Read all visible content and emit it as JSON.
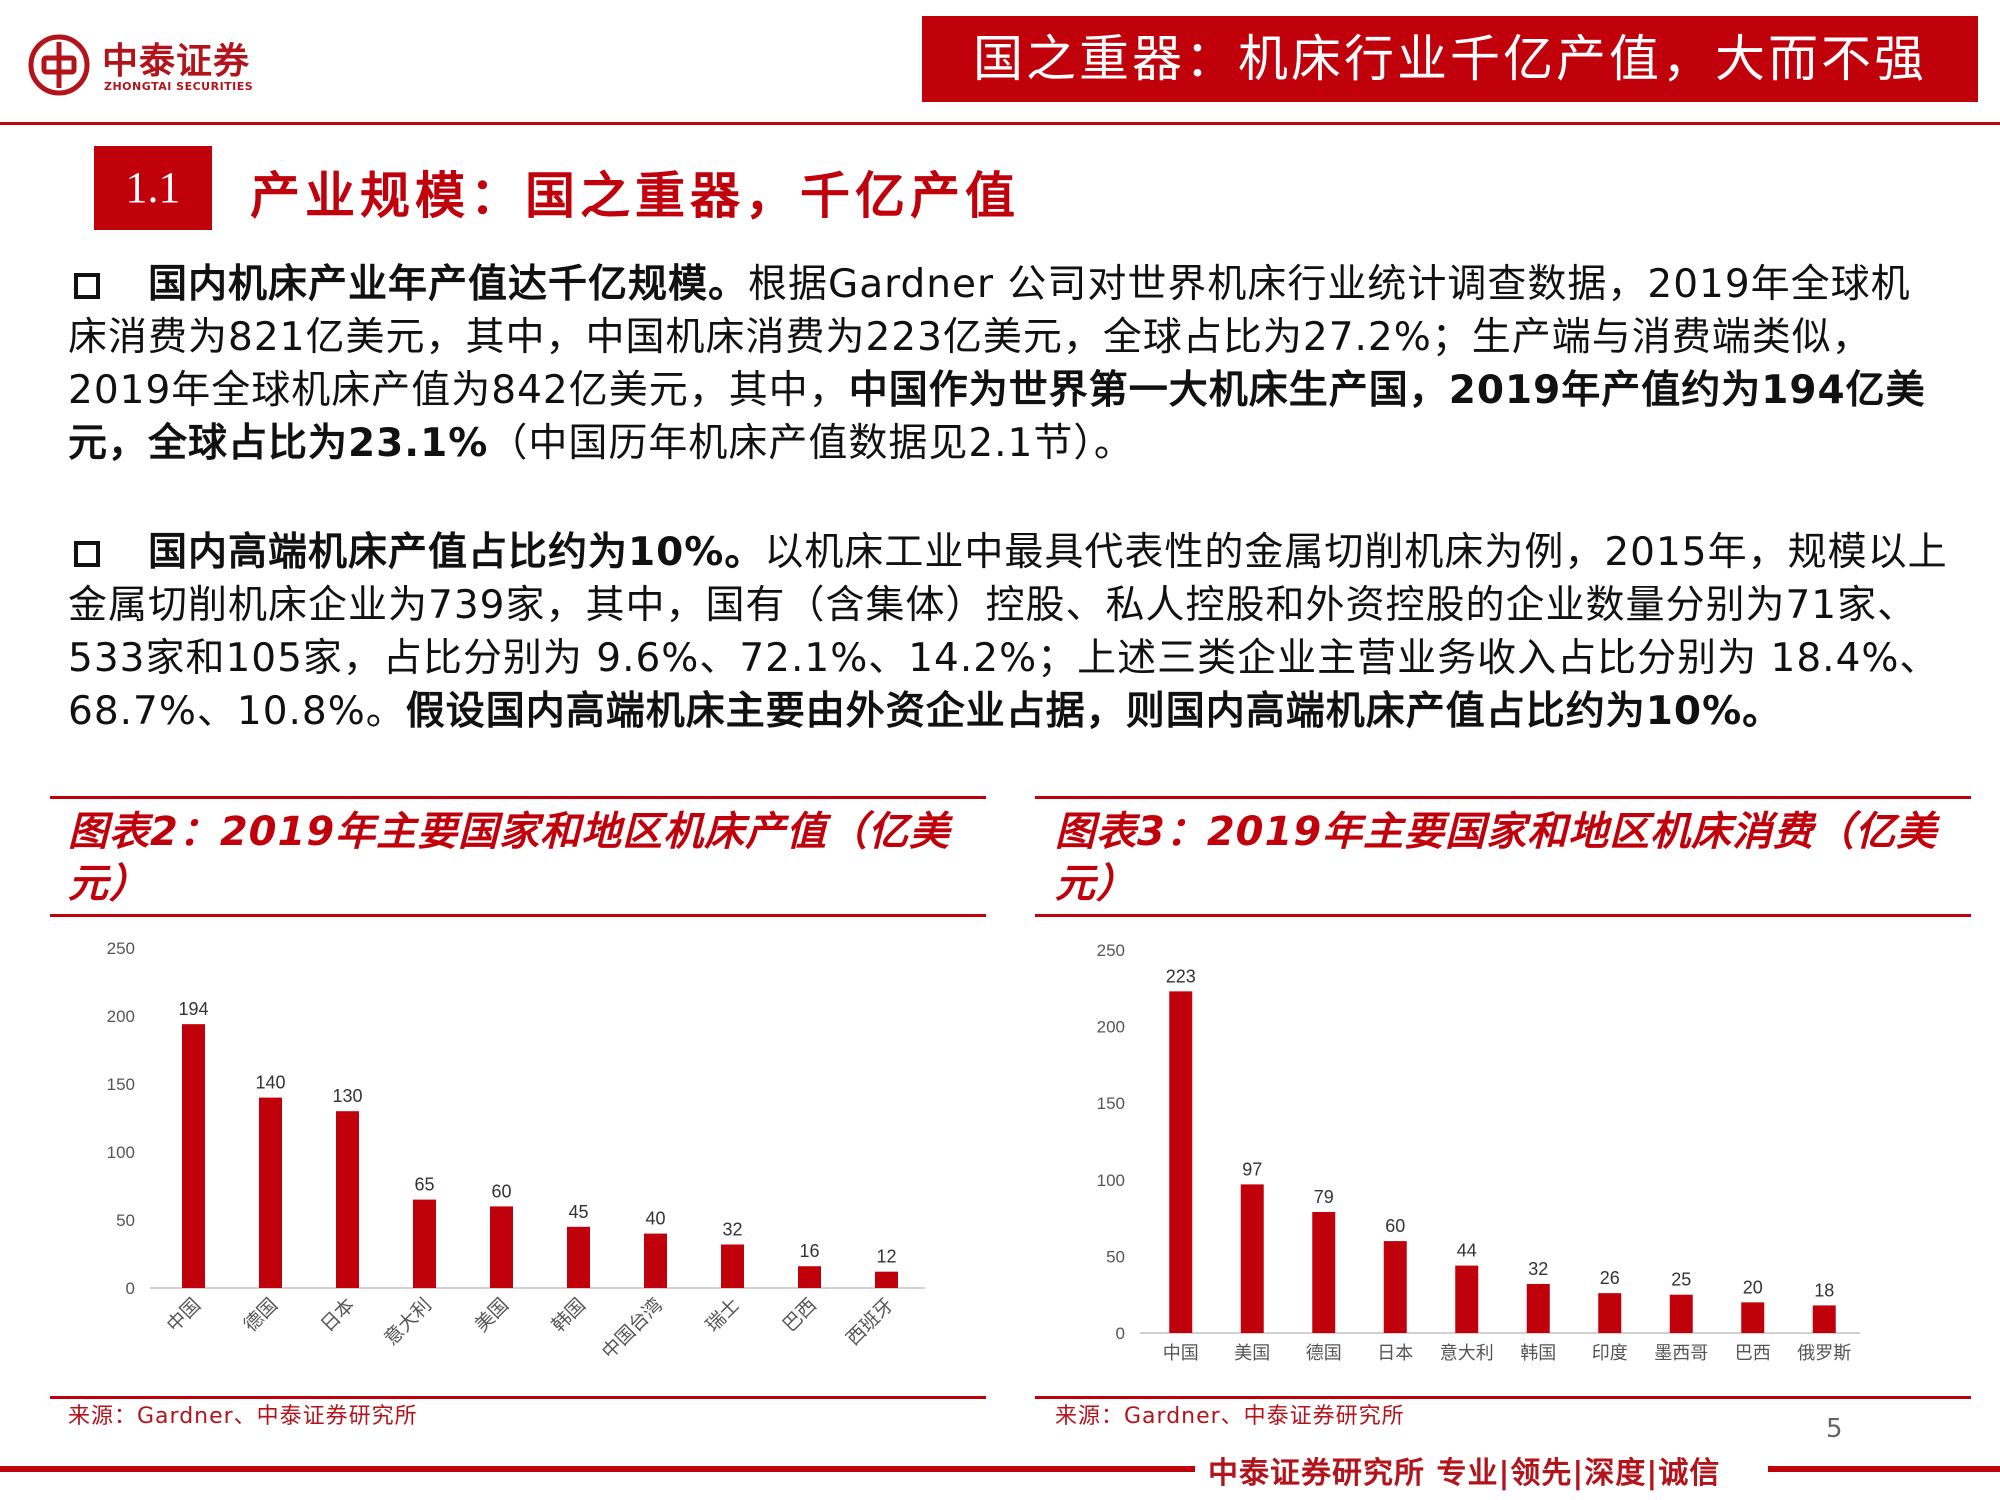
{
  "header": {
    "logo_cn": "中泰证券",
    "logo_en": "ZHONGTAI SECURITIES",
    "title": "国之重器：机床行业千亿产值，大而不强"
  },
  "section": {
    "number": "1.1",
    "title": "产业规模：国之重器，千亿产值"
  },
  "paragraph1": {
    "lead": "国内机床产业年产值达千亿规模。",
    "text1": "根据Gardner 公司对世界机床行业统计调查数据，2019年全球机床消费为821亿美元，其中，中国机床消费为223亿美元，全球占比为27.2%；生产端与消费端类似，2019年全球机床产值为842亿美元，其中，",
    "bold": "中国作为世界第一大机床生产国，2019年产值约为194亿美元，全球占比为23.1%",
    "text2": "（中国历年机床产值数据见2.1节）。"
  },
  "paragraph2": {
    "lead": "国内高端机床产值占比约为10%。",
    "text1": "以机床工业中最具代表性的金属切削机床为例，2015年，规模以上金属切削机床企业为739家，其中，国有（含集体）控股、私人控股和外资控股的企业数量分别为71家、533家和105家，占比分别为 9.6%、72.1%、14.2%；上述三类企业主营业务收入占比分别为 18.4%、68.7%、10.8%。",
    "bold": "假设国内高端机床主要由外资企业占据，则国内高端机床产值占比约为10%。"
  },
  "chart_data": [
    {
      "type": "bar",
      "title": "图表2：2019年主要国家和地区机床产值（亿美元）",
      "categories": [
        "中国",
        "德国",
        "日本",
        "意大利",
        "美国",
        "韩国",
        "中国台湾",
        "瑞士",
        "巴西",
        "西班牙"
      ],
      "values": [
        194,
        140,
        130,
        65,
        60,
        45,
        40,
        32,
        16,
        12
      ],
      "ylim": [
        0,
        250
      ],
      "yticks": [
        0,
        50,
        100,
        150,
        200,
        250
      ],
      "xlabel": "",
      "ylabel": "",
      "color": "#c0000b",
      "grid": false,
      "source": "来源：Gardner、中泰证券研究所"
    },
    {
      "type": "bar",
      "title": "图表3：2019年主要国家和地区机床消费（亿美元）",
      "categories": [
        "中国",
        "美国",
        "德国",
        "日本",
        "意大利",
        "韩国",
        "印度",
        "墨西哥",
        "巴西",
        "俄罗斯"
      ],
      "values": [
        223,
        97,
        79,
        60,
        44,
        32,
        26,
        25,
        20,
        18
      ],
      "ylim": [
        0,
        250
      ],
      "yticks": [
        0,
        50,
        100,
        150,
        200,
        250
      ],
      "xlabel": "",
      "ylabel": "",
      "color": "#c0000b",
      "grid": false,
      "source": "来源：Gardner、中泰证券研究所"
    }
  ],
  "footer": {
    "page_number": "5",
    "tagline": "中泰证券研究所 专业|领先|深度|诚信"
  }
}
